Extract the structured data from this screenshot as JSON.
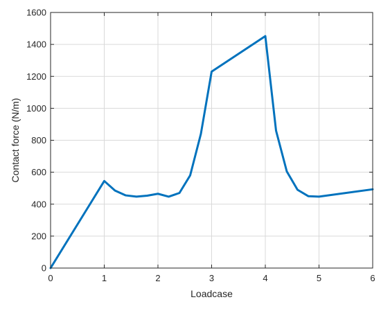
{
  "chart_data": {
    "type": "line",
    "title": "",
    "xlabel": "Loadcase",
    "ylabel": "Contact force (N/m)",
    "xlim": [
      0,
      6
    ],
    "ylim": [
      0,
      1600
    ],
    "x_ticks": [
      0,
      1,
      2,
      3,
      4,
      5,
      6
    ],
    "y_ticks": [
      0,
      200,
      400,
      600,
      800,
      1000,
      1200,
      1400,
      1600
    ],
    "grid": true,
    "legend": "none",
    "series": [
      {
        "color": "#0072bd",
        "x": [
          0,
          1,
          1.2,
          1.4,
          1.6,
          1.8,
          2,
          2.2,
          2.4,
          2.6,
          2.8,
          3,
          4,
          4.2,
          4.4,
          4.6,
          4.8,
          5,
          6
        ],
        "y": [
          0,
          545,
          485,
          455,
          447,
          453,
          465,
          447,
          470,
          580,
          840,
          1230,
          1452,
          860,
          605,
          490,
          450,
          447,
          493
        ]
      }
    ]
  }
}
